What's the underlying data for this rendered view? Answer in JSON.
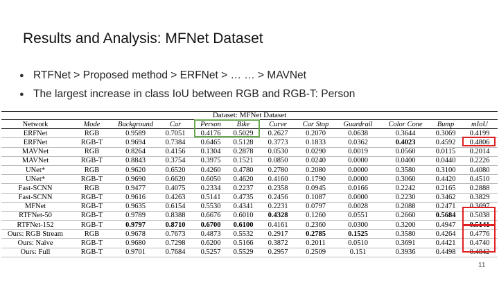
{
  "header": {
    "title": "Results and Analysis: MFNet Dataset"
  },
  "bullets": [
    "RTFNet > Proposed method > ERFNet > … … > MAVNet",
    "The largest increase in class IoU between RGB and RGB-T: Person"
  ],
  "table": {
    "caption": "Dataset: MFNet Dataset",
    "columns": [
      "Network",
      "Mode",
      "Background",
      "Car",
      "Person",
      "Bike",
      "Curve",
      "Car Stop",
      "Guardrail",
      "Color Cone",
      "Bump",
      "mIoU"
    ],
    "rows": [
      [
        "ERFNet",
        "RGB",
        "0.9589",
        "0.7051",
        "0.4176",
        "0.5029",
        "0.2627",
        "0.2070",
        "0.0638",
        "0.3644",
        "0.3069",
        "0.4199"
      ],
      [
        "ERFNet",
        "RGB-T",
        "0.9694",
        "0.7384",
        "0.6465",
        "0.5128",
        "0.3773",
        "0.1833",
        "0.0362",
        "0.4023",
        "0.4592",
        "0.4806"
      ],
      [
        "MAVNet",
        "RGB",
        "0.8264",
        "0.4156",
        "0.1304",
        "0.2878",
        "0.0530",
        "0.0290",
        "0.0019",
        "0.0560",
        "0.0115",
        "0.2014"
      ],
      [
        "MAVNet",
        "RGB-T",
        "0.8843",
        "0.3754",
        "0.3975",
        "0.1521",
        "0.0850",
        "0.0240",
        "0.0000",
        "0.0400",
        "0.0440",
        "0.2226"
      ],
      [
        "UNet*",
        "RGB",
        "0.9620",
        "0.6520",
        "0.4260",
        "0.4780",
        "0.2780",
        "0.2080",
        "0.0000",
        "0.3580",
        "0.3100",
        "0.4080"
      ],
      [
        "UNet*",
        "RGB-T",
        "0.9690",
        "0.6620",
        "0.6050",
        "0.4620",
        "0.4160",
        "0.1790",
        "0.0000",
        "0.3060",
        "0.4420",
        "0.4510"
      ],
      [
        "Fast-SCNN",
        "RGB",
        "0.9477",
        "0.4075",
        "0.2334",
        "0.2237",
        "0.2358",
        "0.0945",
        "0.0166",
        "0.2242",
        "0.2165",
        "0.2888"
      ],
      [
        "Fast-SCNN",
        "RGB-T",
        "0.9616",
        "0.4263",
        "0.5141",
        "0.4735",
        "0.2456",
        "0.1087",
        "0.0000",
        "0.2230",
        "0.3462",
        "0.3829"
      ],
      [
        "MFNet",
        "RGB-T",
        "0.9635",
        "0.6154",
        "0.5530",
        "0.4341",
        "0.2231",
        "0.0797",
        "0.0028",
        "0.2088",
        "0.2471",
        "0.3697"
      ],
      [
        "RTFNet-50",
        "RGB-T",
        "0.9789",
        "0.8388",
        "0.6676",
        "0.6010",
        "0.4328",
        "0.1260",
        "0.0551",
        "0.2660",
        "0.5684",
        "0.5038"
      ],
      [
        "RTFNet-152",
        "RGB-T",
        "0.9797",
        "0.8710",
        "0.6700",
        "0.6100",
        "0.4161",
        "0.2360",
        "0.0300",
        "0.3200",
        "0.4947",
        "0.5141"
      ],
      [
        "Ours: RGB Stream",
        "RGB",
        "0.9678",
        "0.7673",
        "0.4873",
        "0.5532",
        "0.2917",
        "0.2785",
        "0.1525",
        "0.3580",
        "0.4264",
        "0.4776"
      ],
      [
        "Ours: Naive",
        "RGB-T",
        "0.9680",
        "0.7298",
        "0.6200",
        "0.5166",
        "0.3872",
        "0.2011",
        "0.0510",
        "0.3691",
        "0.4421",
        "0.4740"
      ],
      [
        "Ours: Full",
        "RGB-T",
        "0.9701",
        "0.7684",
        "0.5257",
        "0.5529",
        "0.2957",
        "0.2509",
        "0.151",
        "0.3936",
        "0.4498",
        "0.4842"
      ]
    ],
    "bold_cells": [
      [
        1,
        9
      ],
      [
        9,
        6
      ],
      [
        9,
        10
      ],
      [
        10,
        2
      ],
      [
        10,
        3
      ],
      [
        10,
        4
      ],
      [
        10,
        5
      ],
      [
        10,
        11
      ],
      [
        11,
        7
      ],
      [
        11,
        8
      ]
    ]
  },
  "page_number": "11"
}
